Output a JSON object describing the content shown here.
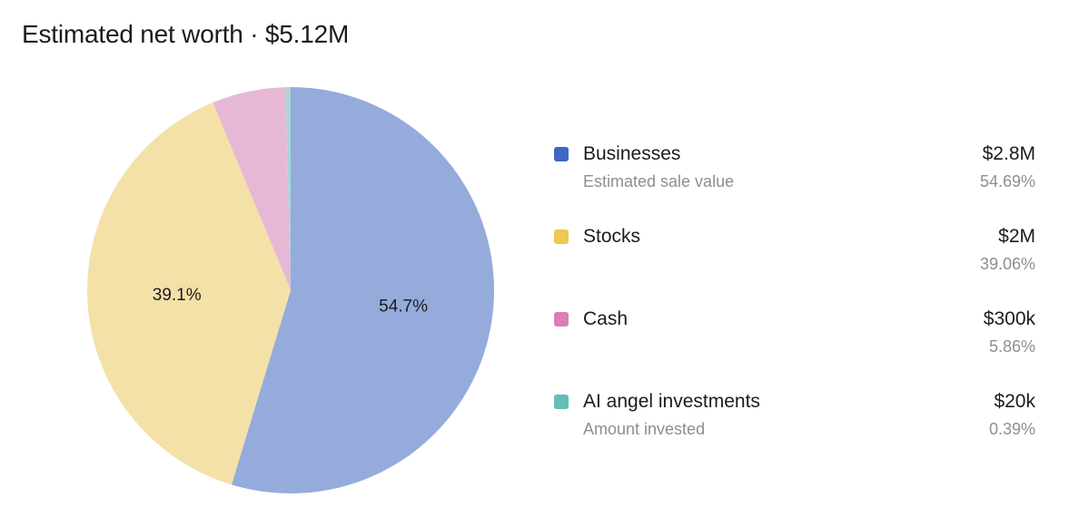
{
  "title": "Estimated net worth · $5.12M",
  "chart_data": {
    "type": "pie",
    "title": "Estimated net worth · $5.12M",
    "slices": [
      {
        "name": "Businesses",
        "subtitle": "Estimated sale value",
        "amount": "$2.8M",
        "percent_text": "54.69%",
        "value": 54.69,
        "slice_label": "54.7%",
        "color": "#95abdc",
        "swatch": "#4067c4"
      },
      {
        "name": "Stocks",
        "subtitle": "",
        "amount": "$2M",
        "percent_text": "39.06%",
        "value": 39.06,
        "slice_label": "39.1%",
        "color": "#f4e1a8",
        "swatch": "#ecc94f"
      },
      {
        "name": "Cash",
        "subtitle": "",
        "amount": "$300k",
        "percent_text": "5.86%",
        "value": 5.86,
        "slice_label": "",
        "color": "#e7b8d5",
        "swatch": "#d97fb5"
      },
      {
        "name": "AI angel investments",
        "subtitle": "Amount invested",
        "amount": "$20k",
        "percent_text": "0.39%",
        "value": 0.39,
        "slice_label": "",
        "color": "#a9d7d2",
        "swatch": "#63beb3"
      }
    ]
  }
}
